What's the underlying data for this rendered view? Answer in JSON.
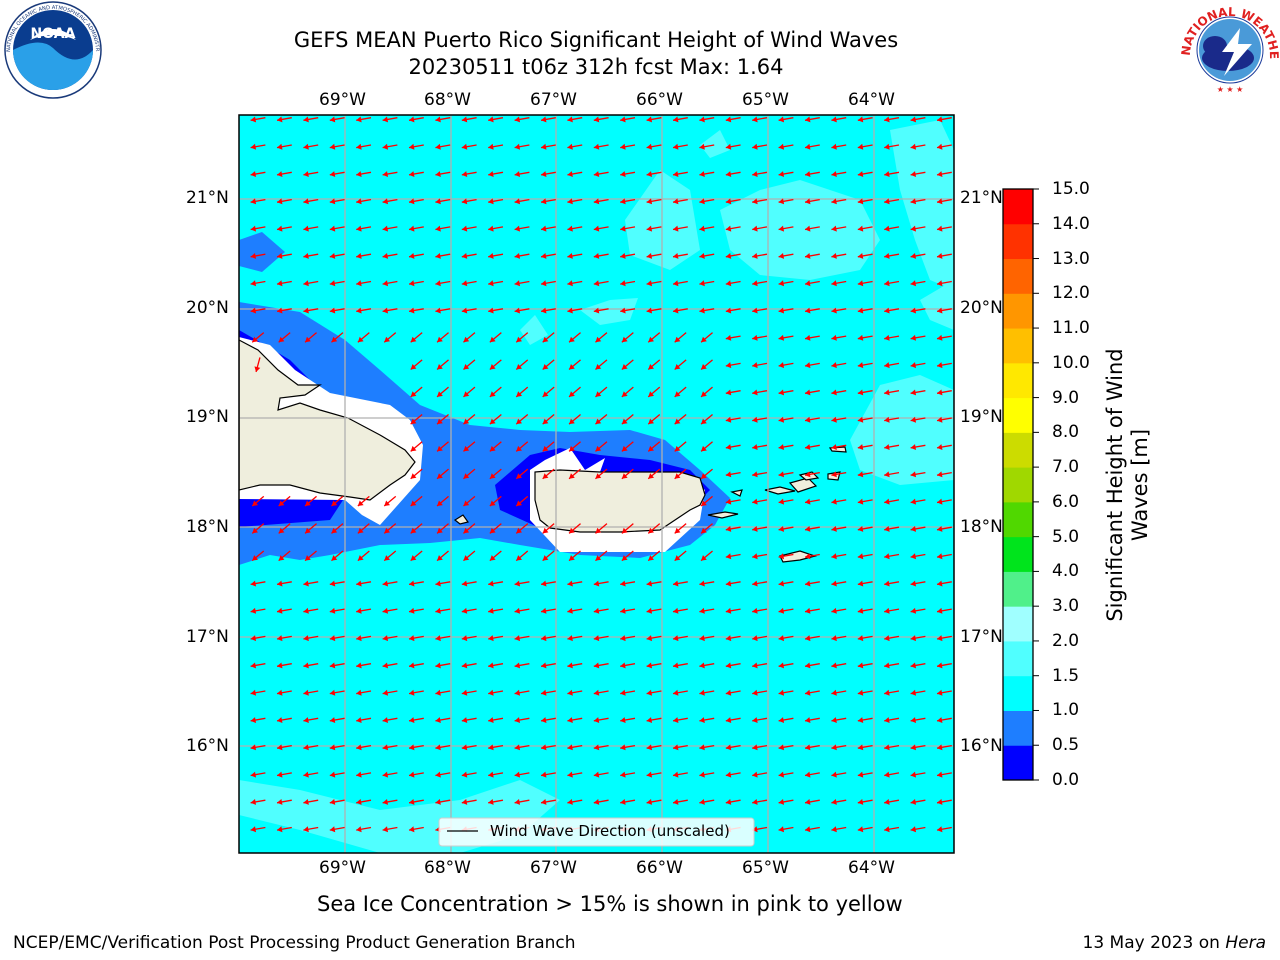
{
  "title_line1": "GEFS MEAN Puerto Rico Significant Height of Wind Waves",
  "title_line2": "20230511 t06z 312h fcst   Max: 1.64",
  "lon_ticks": [
    "69°W",
    "68°W",
    "67°W",
    "66°W",
    "65°W",
    "64°W"
  ],
  "lat_ticks": [
    "21°N",
    "20°N",
    "19°N",
    "18°N",
    "17°N",
    "16°N"
  ],
  "legend": "Wind Wave Direction (unscaled)",
  "colorbar": {
    "label": "Significant Height of Wind Waves [m]",
    "ticks": [
      "0.0",
      "0.5",
      "1.0",
      "1.5",
      "2.0",
      "3.0",
      "4.0",
      "5.0",
      "6.0",
      "7.0",
      "8.0",
      "9.0",
      "10.0",
      "11.0",
      "12.0",
      "13.0",
      "14.0",
      "15.0"
    ],
    "colors": [
      "#0000ff",
      "#1e7eff",
      "#00ffff",
      "#50ffff",
      "#a0ffff",
      "#50f08a",
      "#00e41c",
      "#50d800",
      "#a0d800",
      "#ccdc00",
      "#ffff00",
      "#ffe800",
      "#ffbf00",
      "#ff9600",
      "#ff6400",
      "#ff3200",
      "#ff0000"
    ]
  },
  "note": "Sea Ice Concentration > 15% is shown in pink to yellow",
  "footer_left": "NCEP/EMC/Verification Post Processing Product Generation Branch",
  "footer_date": "13 May 2023 on",
  "footer_host": "Hera",
  "logos": {
    "noaa": {
      "text": "NOAA",
      "ring": "NATIONAL OCEANIC AND ATMOSPHERIC ADMINISTRATION · U.S. DEPARTMENT OF COMMERCE"
    },
    "nws": {
      "ring": "NATIONAL WEATHER SERVICE"
    }
  },
  "colors": {
    "land": "#efeedd",
    "arrow": "#ff0000",
    "grid": "#b0b0b0"
  }
}
